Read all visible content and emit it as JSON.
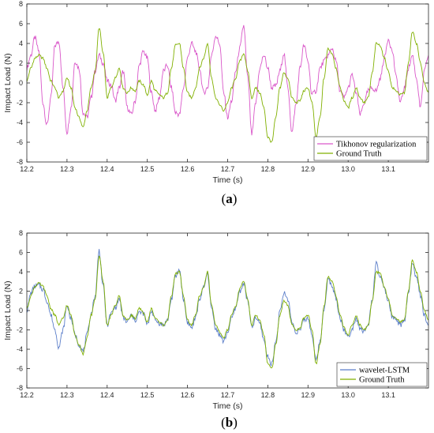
{
  "colors": {
    "tikhonov": "#d957c9",
    "ground_truth": "#80b000",
    "wavelet": "#5b7ec9"
  },
  "chart_data": [
    {
      "type": "line",
      "panel_label": "(a)",
      "xlabel": "Time (s)",
      "ylabel": "Impact Load (N)",
      "xlim": [
        12.2,
        13.2
      ],
      "ylim": [
        -8,
        8
      ],
      "xticks": [
        "12.2",
        "12.3",
        "12.4",
        "12.5",
        "12.6",
        "12.7",
        "12.8",
        "12.9",
        "13.0",
        "13.1"
      ],
      "yticks": [
        "-8",
        "-6",
        "-4",
        "-2",
        "0",
        "2",
        "4",
        "6",
        "8"
      ],
      "legend_position": "bottom-right",
      "grid": false,
      "x": [
        12.2,
        12.21,
        12.22,
        12.23,
        12.24,
        12.25,
        12.26,
        12.27,
        12.28,
        12.29,
        12.3,
        12.31,
        12.32,
        12.33,
        12.34,
        12.35,
        12.36,
        12.37,
        12.38,
        12.39,
        12.4,
        12.41,
        12.42,
        12.43,
        12.44,
        12.45,
        12.46,
        12.47,
        12.48,
        12.49,
        12.5,
        12.51,
        12.52,
        12.53,
        12.54,
        12.55,
        12.56,
        12.57,
        12.58,
        12.59,
        12.6,
        12.61,
        12.62,
        12.63,
        12.64,
        12.65,
        12.66,
        12.67,
        12.68,
        12.69,
        12.7,
        12.71,
        12.72,
        12.73,
        12.74,
        12.75,
        12.76,
        12.77,
        12.78,
        12.79,
        12.8,
        12.81,
        12.82,
        12.83,
        12.84,
        12.85,
        12.86,
        12.87,
        12.88,
        12.89,
        12.9,
        12.91,
        12.92,
        12.93,
        12.94,
        12.95,
        12.96,
        12.97,
        12.98,
        12.99,
        13.0,
        13.01,
        13.02,
        13.03,
        13.04,
        13.05,
        13.06,
        13.07,
        13.08,
        13.09,
        13.1,
        13.11,
        13.12,
        13.13,
        13.14,
        13.15,
        13.16,
        13.17,
        13.18,
        13.19,
        13.2
      ],
      "series": [
        {
          "name": "Tikhonov regularization",
          "color_key": "tikhonov",
          "values": [
            1.5,
            2.8,
            4.6,
            3.2,
            -2.0,
            -4.3,
            -1.5,
            3.8,
            4.2,
            -0.5,
            -5.0,
            -2.5,
            2.2,
            1.5,
            -3.0,
            -3.5,
            -1.5,
            1.2,
            2.8,
            2.0,
            0.2,
            -0.2,
            -1.8,
            -0.5,
            1.2,
            -2.5,
            -3.2,
            -1.8,
            1.8,
            3.2,
            2.5,
            -1.0,
            -2.8,
            -1.5,
            1.2,
            1.8,
            -0.5,
            -3.0,
            -3.2,
            -0.5,
            2.5,
            4.0,
            3.2,
            1.5,
            -1.0,
            -0.5,
            2.8,
            4.8,
            4.0,
            -1.0,
            -3.5,
            -1.8,
            1.2,
            3.5,
            5.8,
            0.5,
            -5.2,
            -2.0,
            1.5,
            2.8,
            1.5,
            -0.5,
            -0.3,
            1.2,
            3.0,
            -0.5,
            -5.0,
            -2.2,
            1.5,
            3.8,
            2.2,
            -1.2,
            -0.8,
            1.5,
            2.2,
            2.8,
            3.5,
            2.2,
            -0.8,
            -1.5,
            -0.5,
            0.8,
            -1.0,
            -3.2,
            -2.0,
            -0.8,
            -0.5,
            -0.8,
            0.5,
            2.5,
            4.5,
            3.2,
            0.5,
            -2.0,
            -0.5,
            1.5,
            2.8,
            0.5,
            -2.5,
            1.2,
            2.8
          ]
        },
        {
          "name": "Ground Truth",
          "color_key": "ground_truth",
          "values": [
            0.2,
            1.5,
            2.5,
            2.8,
            2.5,
            1.5,
            0.2,
            -0.5,
            -1.5,
            -0.8,
            0.5,
            -0.5,
            -2.5,
            -3.5,
            -4.5,
            -2.8,
            -0.5,
            1.2,
            5.6,
            3.0,
            -1.5,
            -0.5,
            0.5,
            1.5,
            -0.5,
            -1.0,
            -0.5,
            -0.8,
            0.2,
            -0.2,
            -1.2,
            0.2,
            -0.8,
            -1.2,
            -1.5,
            -1.0,
            1.5,
            3.8,
            4.0,
            1.5,
            -1.0,
            -1.5,
            -0.5,
            1.5,
            2.5,
            4.0,
            0.5,
            -1.5,
            -2.2,
            -2.8,
            -2.0,
            -0.5,
            0.5,
            2.2,
            3.0,
            1.2,
            -1.5,
            -0.5,
            -1.0,
            -2.5,
            -5.5,
            -6.0,
            -3.5,
            -0.5,
            1.0,
            0.5,
            -1.5,
            -2.0,
            -1.8,
            -0.8,
            -0.5,
            -2.0,
            -5.5,
            -3.5,
            0.5,
            3.5,
            3.0,
            1.5,
            -0.5,
            -1.8,
            -2.5,
            -1.5,
            -0.5,
            -1.5,
            -2.0,
            -1.5,
            1.0,
            4.0,
            3.8,
            2.5,
            1.2,
            -0.5,
            -0.8,
            -1.2,
            -1.0,
            2.0,
            5.2,
            4.0,
            2.0,
            0.0,
            -1.0
          ]
        }
      ]
    },
    {
      "type": "line",
      "panel_label": "(b)",
      "xlabel": "Time (s)",
      "ylabel": "Impact Load (N)",
      "xlim": [
        12.2,
        13.2
      ],
      "ylim": [
        -8,
        8
      ],
      "xticks": [
        "12.2",
        "12.3",
        "12.4",
        "12.5",
        "12.6",
        "12.7",
        "12.8",
        "12.9",
        "13.0",
        "13.1"
      ],
      "yticks": [
        "-8",
        "-6",
        "-4",
        "-2",
        "0",
        "2",
        "4",
        "6",
        "8"
      ],
      "legend_position": "bottom-right",
      "grid": false,
      "x": [
        12.2,
        12.21,
        12.22,
        12.23,
        12.24,
        12.25,
        12.26,
        12.27,
        12.28,
        12.29,
        12.3,
        12.31,
        12.32,
        12.33,
        12.34,
        12.35,
        12.36,
        12.37,
        12.38,
        12.39,
        12.4,
        12.41,
        12.42,
        12.43,
        12.44,
        12.45,
        12.46,
        12.47,
        12.48,
        12.49,
        12.5,
        12.51,
        12.52,
        12.53,
        12.54,
        12.55,
        12.56,
        12.57,
        12.58,
        12.59,
        12.6,
        12.61,
        12.62,
        12.63,
        12.64,
        12.65,
        12.66,
        12.67,
        12.68,
        12.69,
        12.7,
        12.71,
        12.72,
        12.73,
        12.74,
        12.75,
        12.76,
        12.77,
        12.78,
        12.79,
        12.8,
        12.81,
        12.82,
        12.83,
        12.84,
        12.85,
        12.86,
        12.87,
        12.88,
        12.89,
        12.9,
        12.91,
        12.92,
        12.93,
        12.94,
        12.95,
        12.96,
        12.97,
        12.98,
        12.99,
        13.0,
        13.01,
        13.02,
        13.03,
        13.04,
        13.05,
        13.06,
        13.07,
        13.08,
        13.09,
        13.1,
        13.11,
        13.12,
        13.13,
        13.14,
        13.15,
        13.16,
        13.17,
        13.18,
        13.19,
        13.2
      ],
      "series": [
        {
          "name": "wavelet-LSTM",
          "color_key": "wavelet",
          "values": [
            0.0,
            1.8,
            2.5,
            2.6,
            2.2,
            1.0,
            -0.5,
            -2.0,
            -3.8,
            -2.0,
            0.5,
            -0.8,
            -2.5,
            -3.5,
            -4.2,
            -2.5,
            -0.3,
            1.5,
            6.2,
            2.5,
            -1.5,
            -0.3,
            0.3,
            1.2,
            -0.8,
            -1.2,
            -0.5,
            -1.0,
            -0.2,
            -0.3,
            -1.5,
            0.0,
            -1.0,
            -1.3,
            -1.5,
            -1.0,
            1.2,
            3.5,
            4.2,
            1.2,
            -1.2,
            -1.8,
            -0.8,
            1.2,
            2.3,
            3.8,
            0.2,
            -1.8,
            -2.5,
            -3.2,
            -2.2,
            -0.8,
            0.3,
            2.0,
            2.8,
            1.0,
            -1.8,
            -0.8,
            -1.3,
            -3.0,
            -4.8,
            -5.5,
            -3.2,
            -0.2,
            1.8,
            1.2,
            -1.2,
            -2.2,
            -2.0,
            -1.0,
            -0.8,
            -2.5,
            -5.2,
            -3.2,
            0.2,
            3.2,
            2.5,
            1.2,
            -0.8,
            -2.0,
            -2.8,
            -1.8,
            -0.8,
            -1.8,
            -2.2,
            -1.5,
            1.2,
            4.8,
            3.5,
            2.2,
            1.0,
            -0.8,
            -1.0,
            -1.5,
            -1.2,
            1.8,
            4.8,
            3.5,
            1.5,
            -0.5,
            -1.5
          ]
        },
        {
          "name": "Ground Truth",
          "color_key": "ground_truth",
          "values": [
            0.2,
            1.5,
            2.5,
            2.8,
            2.5,
            1.5,
            0.2,
            -0.5,
            -1.5,
            -0.8,
            0.5,
            -0.5,
            -2.5,
            -3.5,
            -4.5,
            -2.8,
            -0.5,
            1.2,
            5.6,
            3.0,
            -1.5,
            -0.5,
            0.5,
            1.5,
            -0.5,
            -1.0,
            -0.5,
            -0.8,
            0.2,
            -0.2,
            -1.2,
            0.2,
            -0.8,
            -1.2,
            -1.5,
            -1.0,
            1.5,
            3.8,
            4.0,
            1.5,
            -1.0,
            -1.5,
            -0.5,
            1.5,
            2.5,
            4.0,
            0.5,
            -1.5,
            -2.2,
            -2.8,
            -2.0,
            -0.5,
            0.5,
            2.2,
            3.0,
            1.2,
            -1.5,
            -0.5,
            -1.0,
            -2.5,
            -5.5,
            -6.0,
            -3.5,
            -0.5,
            1.0,
            0.5,
            -1.5,
            -2.0,
            -1.8,
            -0.8,
            -0.5,
            -2.0,
            -5.5,
            -3.5,
            0.5,
            3.5,
            3.0,
            1.5,
            -0.5,
            -1.8,
            -2.5,
            -1.5,
            -0.5,
            -1.5,
            -2.0,
            -1.5,
            1.0,
            4.0,
            3.8,
            2.5,
            1.2,
            -0.5,
            -0.8,
            -1.2,
            -1.0,
            2.0,
            5.2,
            4.0,
            2.0,
            0.0,
            -1.0
          ]
        }
      ]
    }
  ]
}
